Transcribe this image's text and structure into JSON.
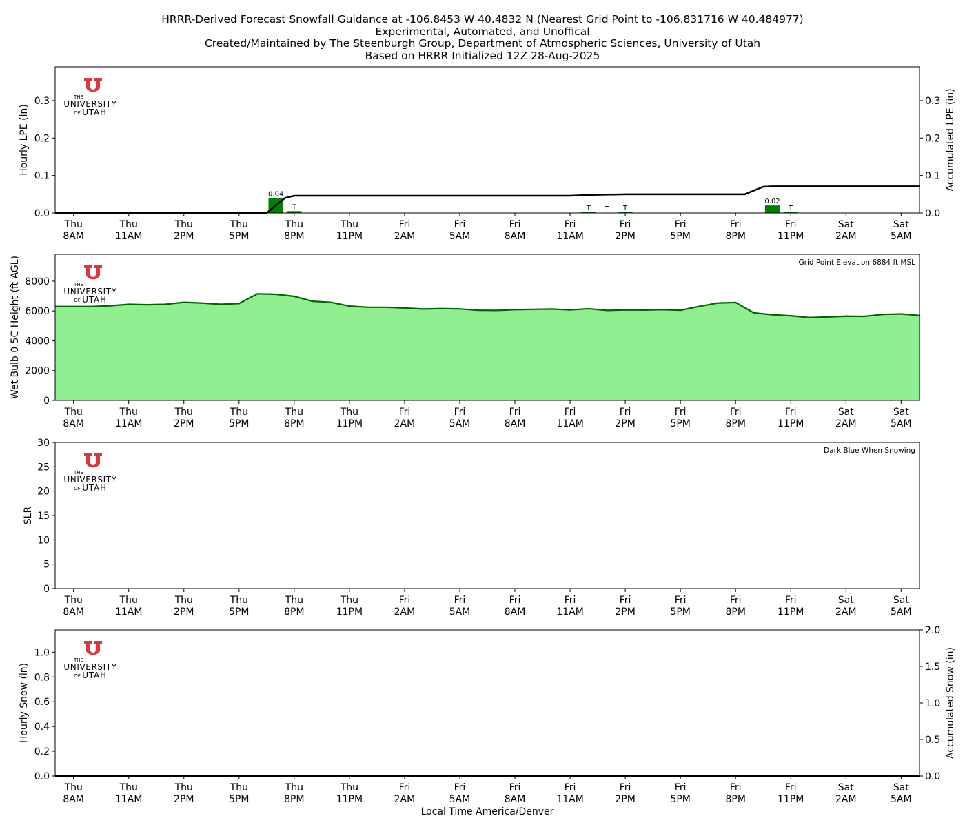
{
  "title": {
    "lines": [
      "HRRR-Derived Forecast Snowfall Guidance at -106.8453 W 40.4832 N (Nearest Grid Point to -106.831716 W 40.484977)",
      "Experimental, Automated, and Unoffical",
      "Created/Maintained by The Steenburgh Group, Department of Atmospheric Sciences, University of Utah",
      "Based on HRRR Initialized 12Z 28-Aug-2025"
    ]
  },
  "logo": {
    "text_the": "THE",
    "text_university": "UNIVERSITY",
    "text_of": "OF",
    "text_utah": "UTAH",
    "color": "#d9393e"
  },
  "colors": {
    "bar_green": "#008000",
    "line_black": "#000000",
    "wetbulb_fill": "#90ee90",
    "wetbulb_line": "#006400"
  },
  "chart_data": [
    {
      "type": "bar",
      "id": "lpe",
      "ylabel": "Hourly LPE (in)",
      "ylabel_right": "Accumulated LPE (in)",
      "ylim": [
        0,
        0.39
      ],
      "yticks": [
        "0.0",
        "0.1",
        "0.2",
        "0.3"
      ],
      "ytick_values": [
        0,
        0.1,
        0.2,
        0.3
      ],
      "ytick_labels_right": [
        "0.0",
        "0.1",
        "0.2",
        "0.3"
      ],
      "xlim": [
        -1,
        46
      ],
      "x_tick_positions": [
        0,
        3,
        6,
        9,
        12,
        15,
        18,
        21,
        24,
        27,
        30,
        33,
        36,
        39,
        42,
        45
      ],
      "x_tick_days": [
        "Thu",
        "Thu",
        "Thu",
        "Thu",
        "Thu",
        "Thu",
        "Fri",
        "Fri",
        "Fri",
        "Fri",
        "Fri",
        "Fri",
        "Fri",
        "Fri",
        "Sat",
        "Sat"
      ],
      "x_tick_times": [
        "8AM",
        "11AM",
        "2PM",
        "5PM",
        "8PM",
        "11PM",
        "2AM",
        "5AM",
        "8AM",
        "11AM",
        "2PM",
        "5PM",
        "8PM",
        "11PM",
        "2AM",
        "5AM"
      ],
      "bars": [
        {
          "x": 11,
          "value": 0.04,
          "label": "0.04"
        },
        {
          "x": 12,
          "value": 0.005,
          "label": "T"
        },
        {
          "x": 28,
          "value": 0.002,
          "label": "T"
        },
        {
          "x": 29,
          "value": 0.0,
          "label": "T"
        },
        {
          "x": 30,
          "value": 0.002,
          "label": "T"
        },
        {
          "x": 38,
          "value": 0.02,
          "label": "0.02"
        },
        {
          "x": 39,
          "value": 0.002,
          "label": "T"
        }
      ],
      "accumulated": {
        "x": [
          -1,
          10.5,
          11.5,
          12,
          27,
          28,
          30,
          36.5,
          37.5,
          38,
          46
        ],
        "y": [
          0,
          0,
          0.04,
          0.046,
          0.046,
          0.048,
          0.05,
          0.05,
          0.07,
          0.071,
          0.071
        ]
      }
    },
    {
      "type": "area",
      "id": "wetbulb",
      "ylabel": "Wet Bulb 0.5C Height (ft AGL)",
      "annotation": "Grid Point Elevation 6884 ft MSL",
      "ylim": [
        0,
        9800
      ],
      "yticks": [
        "0",
        "2000",
        "4000",
        "6000",
        "8000"
      ],
      "ytick_values": [
        0,
        2000,
        4000,
        6000,
        8000
      ],
      "xlim": [
        -1,
        46
      ],
      "x_tick_positions": [
        0,
        3,
        6,
        9,
        12,
        15,
        18,
        21,
        24,
        27,
        30,
        33,
        36,
        39,
        42,
        45
      ],
      "x_tick_days": [
        "Thu",
        "Thu",
        "Thu",
        "Thu",
        "Thu",
        "Thu",
        "Fri",
        "Fri",
        "Fri",
        "Fri",
        "Fri",
        "Fri",
        "Fri",
        "Fri",
        "Sat",
        "Sat"
      ],
      "x_tick_times": [
        "8AM",
        "11AM",
        "2PM",
        "5PM",
        "8PM",
        "11PM",
        "2AM",
        "5AM",
        "8AM",
        "11AM",
        "2PM",
        "5PM",
        "8PM",
        "11PM",
        "2AM",
        "5AM"
      ],
      "x": [
        -1,
        0,
        1,
        2,
        3,
        4,
        5,
        6,
        7,
        8,
        9,
        10,
        11,
        12,
        13,
        14,
        15,
        16,
        17,
        18,
        19,
        20,
        21,
        22,
        23,
        24,
        25,
        26,
        27,
        28,
        29,
        30,
        31,
        32,
        33,
        34,
        35,
        36,
        37,
        38,
        39,
        40,
        41,
        42,
        43,
        44,
        45,
        46
      ],
      "values": [
        6300,
        6300,
        6300,
        6350,
        6450,
        6420,
        6450,
        6580,
        6530,
        6450,
        6500,
        7150,
        7120,
        6980,
        6650,
        6580,
        6330,
        6250,
        6250,
        6200,
        6130,
        6160,
        6140,
        6050,
        6040,
        6090,
        6110,
        6130,
        6070,
        6150,
        6040,
        6070,
        6060,
        6090,
        6050,
        6300,
        6530,
        6570,
        5870,
        5750,
        5680,
        5560,
        5600,
        5650,
        5640,
        5770,
        5800,
        5700
      ]
    },
    {
      "type": "line",
      "id": "slr",
      "ylabel": "SLR",
      "annotation": "Dark Blue When Snowing",
      "ylim": [
        0,
        30
      ],
      "yticks": [
        "0",
        "5",
        "10",
        "15",
        "20",
        "25",
        "30"
      ],
      "ytick_values": [
        0,
        5,
        10,
        15,
        20,
        25,
        30
      ],
      "xlim": [
        -1,
        46
      ],
      "x_tick_positions": [
        0,
        3,
        6,
        9,
        12,
        15,
        18,
        21,
        24,
        27,
        30,
        33,
        36,
        39,
        42,
        45
      ],
      "x_tick_days": [
        "Thu",
        "Thu",
        "Thu",
        "Thu",
        "Thu",
        "Thu",
        "Fri",
        "Fri",
        "Fri",
        "Fri",
        "Fri",
        "Fri",
        "Fri",
        "Fri",
        "Sat",
        "Sat"
      ],
      "x_tick_times": [
        "8AM",
        "11AM",
        "2PM",
        "5PM",
        "8PM",
        "11PM",
        "2AM",
        "5AM",
        "8AM",
        "11AM",
        "2PM",
        "5PM",
        "8PM",
        "11PM",
        "2AM",
        "5AM"
      ]
    },
    {
      "type": "bar",
      "id": "snow",
      "ylabel": "Hourly Snow (in)",
      "ylabel_right": "Accumulated Snow (in)",
      "xlabel": "Local Time America/Denver",
      "ylim": [
        0,
        1.18
      ],
      "yticks": [
        "0.0",
        "0.2",
        "0.4",
        "0.6",
        "0.8",
        "1.0"
      ],
      "ytick_values": [
        0,
        0.2,
        0.4,
        0.6,
        0.8,
        1.0
      ],
      "ylim_right": [
        0,
        2.0
      ],
      "ytick_labels_right": [
        "0.0",
        "0.5",
        "1.0",
        "1.5",
        "2.0"
      ],
      "ytick_values_right": [
        0,
        0.5,
        1.0,
        1.5,
        2.0
      ],
      "xlim": [
        -1,
        46
      ],
      "x_tick_positions": [
        0,
        3,
        6,
        9,
        12,
        15,
        18,
        21,
        24,
        27,
        30,
        33,
        36,
        39,
        42,
        45
      ],
      "x_tick_days": [
        "Thu",
        "Thu",
        "Thu",
        "Thu",
        "Thu",
        "Thu",
        "Fri",
        "Fri",
        "Fri",
        "Fri",
        "Fri",
        "Fri",
        "Fri",
        "Fri",
        "Sat",
        "Sat"
      ],
      "x_tick_times": [
        "8AM",
        "11AM",
        "2PM",
        "5PM",
        "8PM",
        "11PM",
        "2AM",
        "5AM",
        "8AM",
        "11AM",
        "2PM",
        "5PM",
        "8PM",
        "11PM",
        "2AM",
        "5AM"
      ],
      "accumulated": {
        "x": [
          -1,
          46
        ],
        "y": [
          0,
          0
        ]
      }
    }
  ]
}
